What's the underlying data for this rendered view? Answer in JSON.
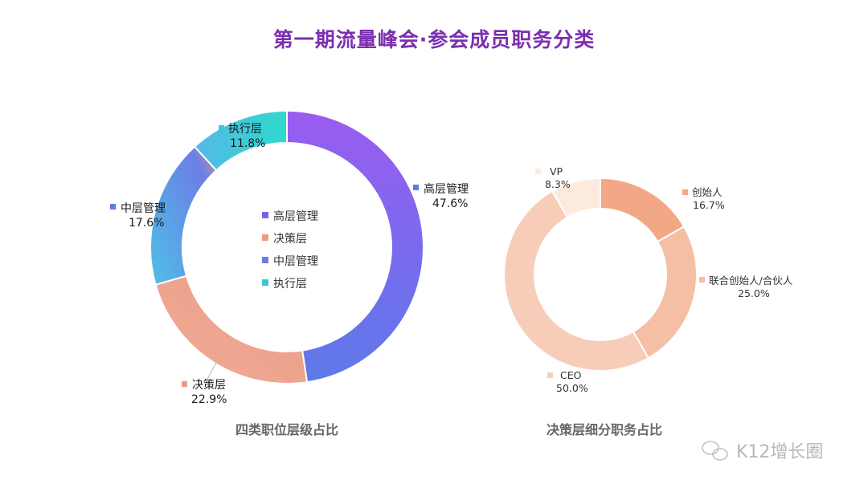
{
  "title": "第一期流量峰会·参会成员职务分类",
  "watermark": "K12增长圈",
  "chart_data": [
    {
      "type": "pie",
      "donut": true,
      "caption": "四类职位层级占比",
      "legend_position": "center",
      "slices": [
        {
          "name": "高层管理",
          "value": 47.6,
          "label": "47.6%",
          "colors": [
            "#9a5cf0",
            "#5d79ea"
          ]
        },
        {
          "name": "决策层",
          "value": 22.9,
          "label": "22.9%",
          "colors": [
            "#e6a088",
            "#f0a98f"
          ]
        },
        {
          "name": "中层管理",
          "value": 17.6,
          "label": "17.6%",
          "colors": [
            "#4fb8e6",
            "#6a7fe6"
          ]
        },
        {
          "name": "执行层",
          "value": 11.8,
          "label": "11.8%",
          "colors": [
            "#35d5cf",
            "#5fc4ea"
          ]
        }
      ]
    },
    {
      "type": "pie",
      "donut": true,
      "caption": "决策层细分职务占比",
      "slices": [
        {
          "name": "创始人",
          "value": 16.7,
          "label": "16.7%",
          "color": "#f2a884"
        },
        {
          "name": "联合创始人/合伙人",
          "value": 25.0,
          "label": "25.0%",
          "color": "#f5bfa5"
        },
        {
          "name": "CEO",
          "value": 50.0,
          "label": "50.0%",
          "color": "#f7cdb9"
        },
        {
          "name": "VP",
          "value": 8.3,
          "label": "8.3%",
          "color": "#fcebdc"
        }
      ]
    }
  ]
}
